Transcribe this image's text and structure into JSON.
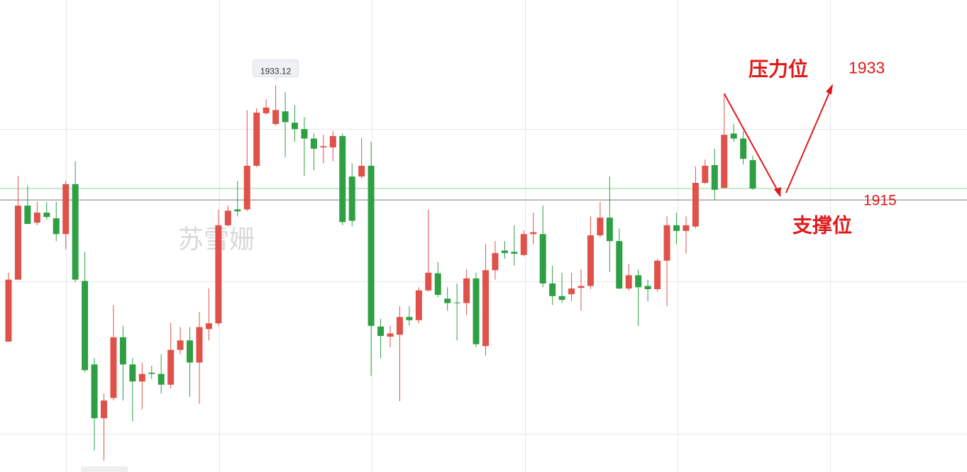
{
  "chart_data": {
    "type": "candlestick",
    "watermark": "苏雪姗",
    "ylim": [
      1872.0,
      1946.6
    ],
    "up_color": "#e0514a",
    "down_color": "#2ea043",
    "open": [
      1892.6,
      1902.4,
      1914.1,
      1911.4,
      1913.0,
      1912.1,
      1909.6,
      1917.5,
      1902.2,
      1889.0,
      1880.5,
      1883.7,
      1893.3,
      1889.0,
      1886.3,
      1887.7,
      1887.5,
      1885.8,
      1891.3,
      1892.8,
      1889.3,
      1894.6,
      1895.5,
      1911.0,
      1913.5,
      1913.5,
      1920.4,
      1928.7,
      1927.0,
      1929.0,
      1927.2,
      1926.2,
      1924.7,
      1923.3,
      1923.3,
      1925.1,
      1918.7,
      1918.7,
      1920.4,
      1895.0,
      1893.4,
      1893.7,
      1896.5,
      1896.0,
      1900.7,
      1903.4,
      1899.4,
      1898.8,
      1898.7,
      1902.6,
      1891.9,
      1903.9,
      1907.0,
      1906.8,
      1906.3,
      1909.6,
      1909.6,
      1901.8,
      1899.8,
      1900.1,
      1901.1,
      1901.4,
      1909.4,
      1912.2,
      1908.5,
      1901.0,
      1903.1,
      1901.4,
      1900.9,
      1905.4,
      1911.0,
      1910.1,
      1910.8,
      1917.7,
      1920.5,
      1916.9,
      1925.5,
      1924.7,
      1921.3
    ],
    "high": [
      1903.5,
      1918.8,
      1917.3,
      1914.7,
      1914.7,
      1914.7,
      1918.0,
      1921.1,
      1906.8,
      1890.0,
      1884.4,
      1898.4,
      1895.1,
      1890.0,
      1889.3,
      1888.8,
      1890.6,
      1895.6,
      1894.9,
      1894.9,
      1897.3,
      1901.0,
      1913.5,
      1914.1,
      1918.0,
      1929.2,
      1929.5,
      1930.9,
      1933.12,
      1932.0,
      1930.0,
      1928.1,
      1925.5,
      1925.3,
      1925.9,
      1925.5,
      1920.8,
      1924.8,
      1924.2,
      1896.2,
      1895.1,
      1898.2,
      1898.2,
      1901.2,
      1913.5,
      1905.2,
      1901.2,
      1901.8,
      1904.0,
      1903.5,
      1908.0,
      1908.5,
      1908.5,
      1911.0,
      1910.2,
      1913.0,
      1914.1,
      1904.6,
      1903.5,
      1903.5,
      1904.0,
      1912.4,
      1914.7,
      1918.7,
      1910.5,
      1904.9,
      1904.0,
      1902.4,
      1905.7,
      1912.4,
      1913.0,
      1912.4,
      1920.3,
      1921.4,
      1923.1,
      1931.8,
      1927.0,
      1925.9,
      1922.0
    ],
    "low": [
      1892.6,
      1902.4,
      1911.2,
      1911.0,
      1911.9,
      1908.5,
      1907.2,
      1902.0,
      1887.8,
      1875.4,
      1873.8,
      1883.3,
      1883.3,
      1880.0,
      1881.9,
      1886.7,
      1884.4,
      1885.2,
      1890.6,
      1883.9,
      1882.8,
      1892.8,
      1895.1,
      1910.8,
      1912.4,
      1913.2,
      1920.2,
      1928.5,
      1926.7,
      1921.7,
      1924.2,
      1918.8,
      1919.7,
      1920.8,
      1921.1,
      1911.0,
      1910.8,
      1918.4,
      1887.2,
      1890.0,
      1891.7,
      1883.2,
      1895.1,
      1895.5,
      1900.5,
      1899.6,
      1897.5,
      1892.8,
      1896.8,
      1891.7,
      1890.4,
      1902.4,
      1905.7,
      1904.6,
      1906.1,
      1908.0,
      1901.2,
      1898.4,
      1898.7,
      1899.0,
      1897.5,
      1900.9,
      1909.1,
      1903.6,
      1900.9,
      1900.7,
      1895.1,
      1899.0,
      1900.5,
      1898.2,
      1908.0,
      1906.5,
      1910.5,
      1917.5,
      1915.0,
      1916.8,
      1924.2,
      1920.6,
      1916.6
    ],
    "close": [
      1902.4,
      1914.1,
      1911.2,
      1913.0,
      1912.3,
      1909.6,
      1917.5,
      1902.4,
      1888.1,
      1880.5,
      1883.3,
      1893.3,
      1889.0,
      1886.3,
      1887.5,
      1887.5,
      1885.8,
      1891.3,
      1892.8,
      1889.3,
      1894.9,
      1895.5,
      1911.0,
      1913.3,
      1913.2,
      1920.4,
      1928.8,
      1929.6,
      1929.2,
      1927.3,
      1926.2,
      1924.7,
      1923.1,
      1923.5,
      1925.1,
      1911.5,
      1911.7,
      1920.4,
      1895.1,
      1893.5,
      1893.9,
      1896.5,
      1896.0,
      1900.7,
      1903.5,
      1900.0,
      1898.7,
      1898.7,
      1902.6,
      1892.2,
      1903.9,
      1906.6,
      1906.6,
      1906.5,
      1909.6,
      1909.9,
      1901.8,
      1899.8,
      1899.2,
      1901.0,
      1901.4,
      1909.4,
      1912.2,
      1908.5,
      1901.0,
      1903.1,
      1901.2,
      1900.9,
      1905.4,
      1911.0,
      1910.1,
      1911.0,
      1917.7,
      1920.4,
      1916.6,
      1925.3,
      1924.7,
      1921.5,
      1916.8
    ],
    "resistance": {
      "label": "压力位",
      "value": 1933
    },
    "support": {
      "label": "支撑位",
      "value": 1915
    }
  }
}
